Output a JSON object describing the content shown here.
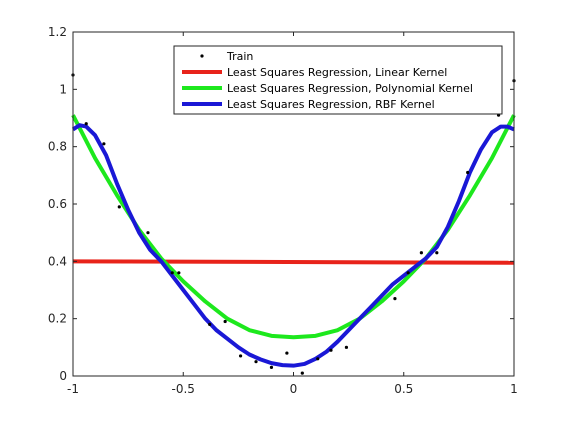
{
  "chart_data": {
    "type": "line",
    "title": "",
    "xlabel": "",
    "ylabel": "",
    "xlim": [
      -1,
      1
    ],
    "ylim": [
      0,
      1.2
    ],
    "xticks": [
      -1,
      -0.5,
      0,
      0.5,
      1
    ],
    "xtick_labels": [
      "-1",
      "-0.5",
      "0",
      "0.5",
      "1"
    ],
    "yticks": [
      0,
      0.2,
      0.4,
      0.6,
      0.8,
      1,
      1.2
    ],
    "ytick_labels": [
      "0",
      "0.2",
      "0.4",
      "0.6",
      "0.8",
      "1",
      "1.2"
    ],
    "grid": false,
    "legend_position": "top-right",
    "series": [
      {
        "name": "Train",
        "style": "scatter",
        "color": "#000000",
        "x": [
          -1.0,
          -0.94,
          -0.86,
          -0.79,
          -0.66,
          -0.55,
          -0.52,
          -0.38,
          -0.31,
          -0.24,
          -0.17,
          -0.1,
          -0.03,
          0.04,
          0.11,
          0.17,
          0.24,
          0.46,
          0.52,
          0.58,
          0.65,
          0.79,
          0.93,
          1.0
        ],
        "y": [
          1.05,
          0.88,
          0.81,
          0.59,
          0.5,
          0.36,
          0.36,
          0.18,
          0.19,
          0.07,
          0.05,
          0.03,
          0.08,
          0.01,
          0.06,
          0.09,
          0.1,
          0.27,
          0.36,
          0.43,
          0.43,
          0.71,
          0.91,
          1.03
        ]
      },
      {
        "name": "Least Squares Regression, Linear Kernel",
        "style": "line",
        "color": "#e8231a",
        "x": [
          -1.0,
          1.0
        ],
        "y": [
          0.4,
          0.395
        ]
      },
      {
        "name": "Least Squares Regression, Polynomial Kernel",
        "style": "line",
        "color": "#1de81d",
        "x": [
          -1.0,
          -0.9,
          -0.8,
          -0.7,
          -0.6,
          -0.5,
          -0.4,
          -0.3,
          -0.2,
          -0.1,
          0.0,
          0.1,
          0.2,
          0.3,
          0.4,
          0.5,
          0.6,
          0.7,
          0.8,
          0.9,
          1.0
        ],
        "y": [
          0.91,
          0.76,
          0.63,
          0.51,
          0.41,
          0.33,
          0.26,
          0.2,
          0.16,
          0.14,
          0.135,
          0.14,
          0.16,
          0.2,
          0.26,
          0.33,
          0.41,
          0.51,
          0.63,
          0.76,
          0.91
        ]
      },
      {
        "name": "Least Squares Regression, RBF Kernel",
        "style": "line",
        "color": "#1a18d6",
        "x": [
          -1.0,
          -0.97,
          -0.94,
          -0.9,
          -0.85,
          -0.8,
          -0.75,
          -0.7,
          -0.65,
          -0.6,
          -0.55,
          -0.5,
          -0.45,
          -0.4,
          -0.35,
          -0.3,
          -0.25,
          -0.2,
          -0.15,
          -0.1,
          -0.05,
          0.0,
          0.05,
          0.1,
          0.15,
          0.2,
          0.25,
          0.3,
          0.35,
          0.4,
          0.45,
          0.5,
          0.55,
          0.6,
          0.65,
          0.7,
          0.75,
          0.8,
          0.85,
          0.9,
          0.94,
          0.97,
          1.0
        ],
        "y": [
          0.86,
          0.875,
          0.87,
          0.84,
          0.77,
          0.67,
          0.58,
          0.5,
          0.44,
          0.4,
          0.35,
          0.3,
          0.25,
          0.2,
          0.16,
          0.13,
          0.1,
          0.075,
          0.058,
          0.045,
          0.038,
          0.036,
          0.042,
          0.06,
          0.085,
          0.12,
          0.16,
          0.2,
          0.24,
          0.28,
          0.32,
          0.35,
          0.38,
          0.41,
          0.45,
          0.52,
          0.61,
          0.71,
          0.79,
          0.85,
          0.87,
          0.87,
          0.86
        ]
      }
    ]
  }
}
